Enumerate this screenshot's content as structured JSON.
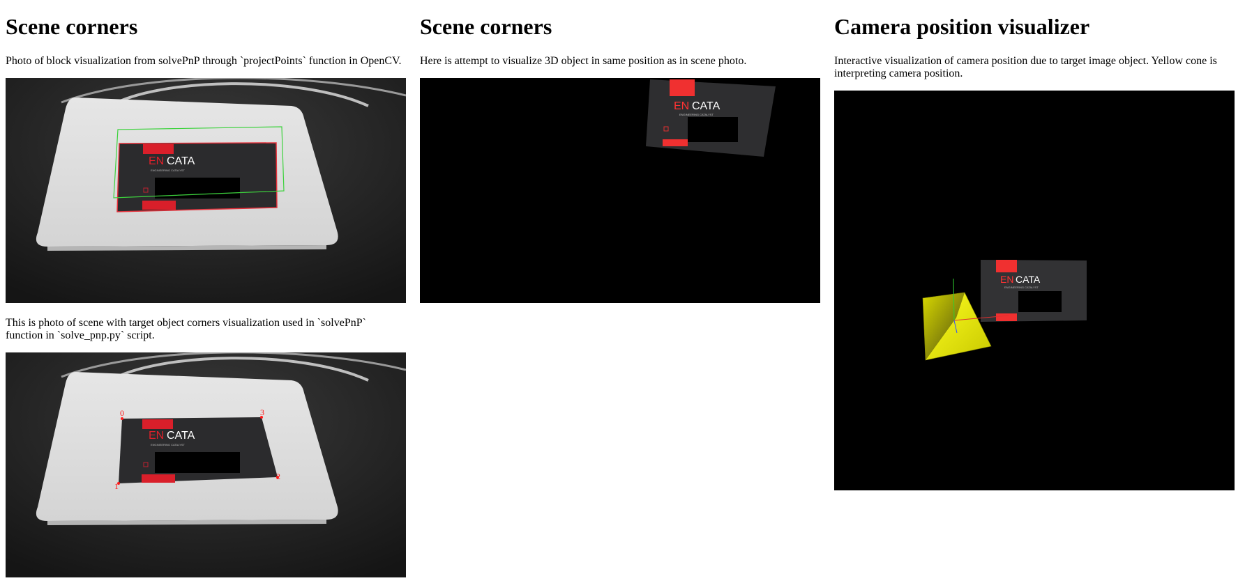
{
  "columns": [
    {
      "heading": "Scene corners",
      "paragraphs": [
        "Photo of block visualization from solvePnP through `projectPoints` function in OpenCV.",
        "This is photo of scene with target object corners visualization used in `solvePnP` function in `solve_pnp.py` script."
      ]
    },
    {
      "heading": "Scene corners",
      "paragraphs": [
        "Here is attempt to visualize 3D object in same position as in scene photo."
      ]
    },
    {
      "heading": "Camera position visualizer",
      "paragraphs": [
        "Interactive visualization of camera position due to target image object. Yellow cone is interpreting camera position."
      ]
    }
  ],
  "card": {
    "brand_prefix": "EN",
    "brand_suffix": "CATA",
    "tagline": "ENGINEERING CATALYST"
  },
  "corner_labels": [
    "0",
    "1",
    "2",
    "3"
  ],
  "colors": {
    "card_red": "#e0202a",
    "outline_red": "#e5303a",
    "outline_green": "#3dd23d",
    "cone_yellow": "#e8e800",
    "background_black": "#000000"
  }
}
